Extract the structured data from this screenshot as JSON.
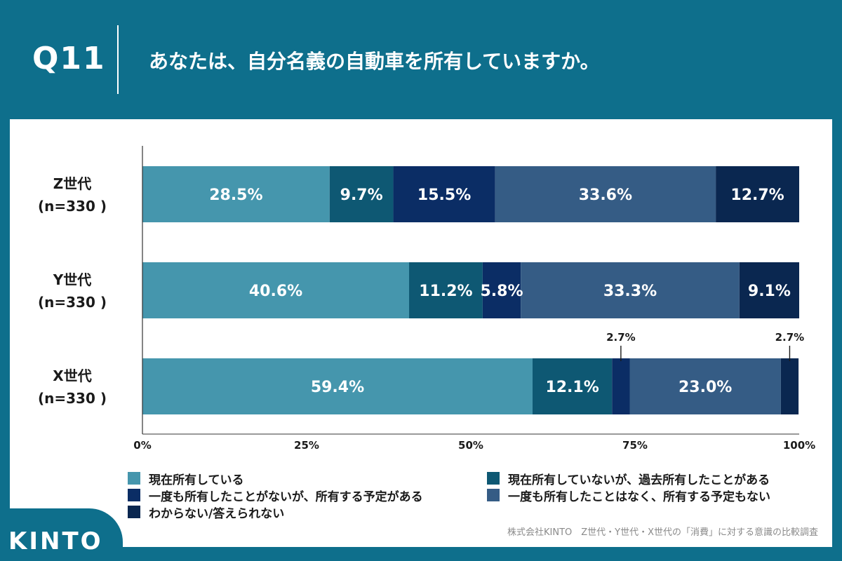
{
  "header": {
    "qnum": "Q11",
    "question": "あなたは、自分名義の自動車を所有していますか。"
  },
  "colors": {
    "header_bg": "#0e6f8c",
    "series": [
      "#4596ad",
      "#0e5873",
      "#0b2d65",
      "#355c85",
      "#0a2750"
    ]
  },
  "chart_data": {
    "type": "bar",
    "orientation": "horizontal",
    "stacked": true,
    "categories": [
      {
        "line1": "Z世代",
        "line2": "(n=330 )"
      },
      {
        "line1": "Y世代",
        "line2": "(n=330 )"
      },
      {
        "line1": "X世代",
        "line2": "(n=330 )"
      }
    ],
    "series": [
      {
        "name": "現在所有している",
        "values": [
          28.5,
          40.6,
          59.4
        ]
      },
      {
        "name": "現在所有していないが、過去所有したことがある",
        "values": [
          9.7,
          11.2,
          12.1
        ]
      },
      {
        "name": "一度も所有したことがないが、所有する予定がある",
        "values": [
          15.5,
          5.8,
          2.7
        ]
      },
      {
        "name": "一度も所有したことはなく、所有する予定もない",
        "values": [
          33.6,
          33.3,
          23.0
        ]
      },
      {
        "name": "わからない/答えられない",
        "values": [
          12.7,
          9.1,
          2.7
        ]
      }
    ],
    "label_suffix": "%",
    "x_ticks": [
      "0%",
      "25%",
      "50%",
      "75%",
      "100%"
    ],
    "xlim": [
      0,
      100
    ],
    "legend_position": "bottom"
  },
  "footer": {
    "source": "株式会社KINTO　Z世代・Y世代・X世代の「消費」に対する意識の比較調査",
    "logo": "KINTO"
  }
}
